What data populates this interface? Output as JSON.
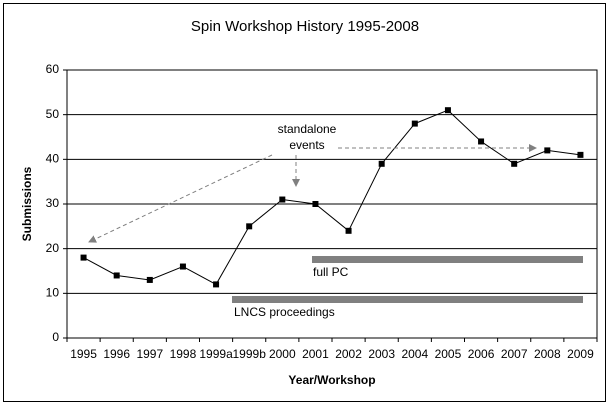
{
  "chart_data": {
    "type": "line",
    "title": "Spin Workshop History 1995-2008",
    "x_label": "Year/Workshop",
    "y_label": "Submissions",
    "categories": [
      "1995",
      "1996",
      "1997",
      "1998",
      "1999a",
      "1999b",
      "2000",
      "2001",
      "2002",
      "2003",
      "2004",
      "2005",
      "2006",
      "2007",
      "2008",
      "2009"
    ],
    "series": [
      {
        "name": "Submissions",
        "color": "#000000",
        "values": [
          18,
          14,
          13,
          16,
          12,
          25,
          31,
          30,
          24,
          39,
          48,
          51,
          44,
          39,
          42,
          41
        ]
      }
    ],
    "ylim": [
      0,
      60
    ],
    "yticks": [
      0,
      10,
      20,
      30,
      40,
      50,
      60
    ],
    "grid": true,
    "annotations": [
      "standalone",
      "events",
      "full PC",
      "LNCS proceedings"
    ]
  }
}
